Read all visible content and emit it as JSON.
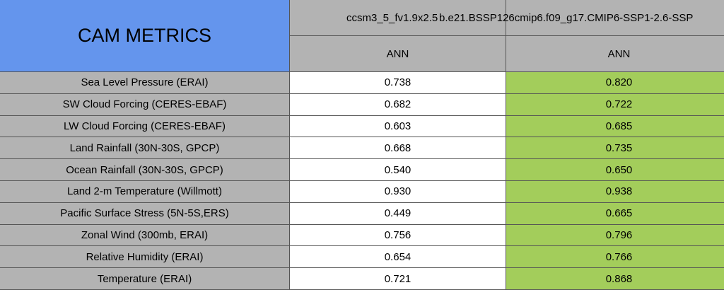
{
  "header": {
    "title": "CAM METRICS",
    "columns": [
      {
        "name": "ccsm3_5_fv1.9x2.5",
        "period": "ANN"
      },
      {
        "name": "b.e21.BSSP126cmip6.f09_g17.CMIP6-SSP1-2.6-SSP",
        "period": "ANN"
      }
    ]
  },
  "table": {
    "rows": [
      {
        "label": "Sea Level Pressure (ERAI)",
        "values": [
          "0.738",
          "0.820"
        ]
      },
      {
        "label": "SW Cloud Forcing (CERES-EBAF)",
        "values": [
          "0.682",
          "0.722"
        ]
      },
      {
        "label": "LW Cloud Forcing (CERES-EBAF)",
        "values": [
          "0.603",
          "0.685"
        ]
      },
      {
        "label": "Land Rainfall (30N-30S, GPCP)",
        "values": [
          "0.668",
          "0.735"
        ]
      },
      {
        "label": "Ocean Rainfall (30N-30S, GPCP)",
        "values": [
          "0.540",
          "0.650"
        ]
      },
      {
        "label": "Land 2-m Temperature (Willmott)",
        "values": [
          "0.930",
          "0.938"
        ]
      },
      {
        "label": "Pacific Surface Stress (5N-5S,ERS)",
        "values": [
          "0.449",
          "0.665"
        ]
      },
      {
        "label": "Zonal Wind (300mb, ERAI)",
        "values": [
          "0.756",
          "0.796"
        ]
      },
      {
        "label": "Relative Humidity (ERAI)",
        "values": [
          "0.654",
          "0.766"
        ]
      },
      {
        "label": "Temperature (ERAI)",
        "values": [
          "0.721",
          "0.868"
        ]
      }
    ]
  }
}
